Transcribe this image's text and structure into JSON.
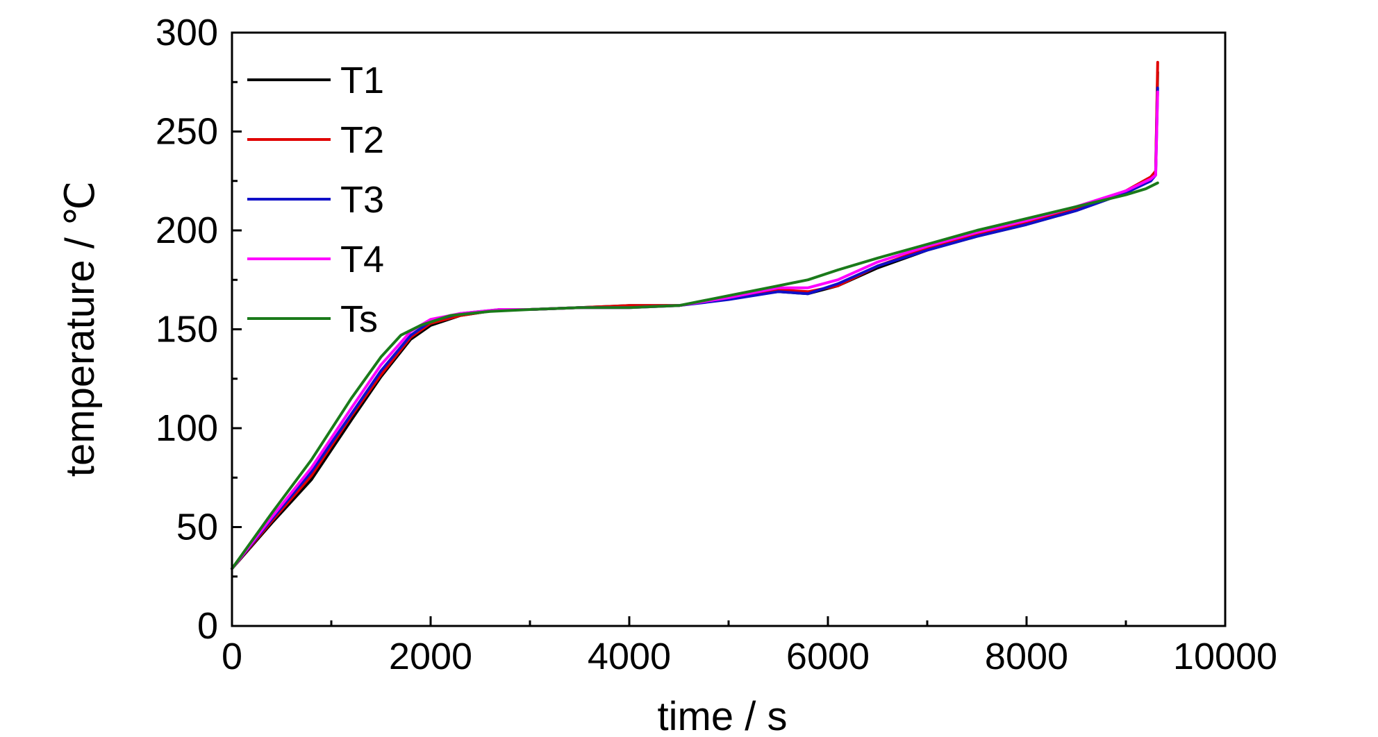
{
  "chart_data": {
    "type": "line",
    "xlabel": "time / s",
    "ylabel": "temperature / ℃",
    "xlim": [
      0,
      10000
    ],
    "ylim": [
      0,
      300
    ],
    "x_ticks": [
      "0",
      "2000",
      "4000",
      "6000",
      "8000",
      "10000"
    ],
    "y_ticks": [
      "0",
      "50",
      "100",
      "150",
      "200",
      "250",
      "300"
    ],
    "grid": false,
    "legend_position": "top-left",
    "series": [
      {
        "name": "T1",
        "color": "#000000",
        "points": [
          [
            0,
            29
          ],
          [
            400,
            52
          ],
          [
            800,
            74
          ],
          [
            1200,
            104
          ],
          [
            1500,
            126
          ],
          [
            1800,
            145
          ],
          [
            2000,
            152
          ],
          [
            2300,
            157
          ],
          [
            2700,
            160
          ],
          [
            3000,
            160
          ],
          [
            3500,
            161
          ],
          [
            4000,
            162
          ],
          [
            4500,
            162
          ],
          [
            5000,
            166
          ],
          [
            5500,
            169
          ],
          [
            5800,
            168
          ],
          [
            6100,
            172
          ],
          [
            6500,
            181
          ],
          [
            7000,
            190
          ],
          [
            7500,
            197
          ],
          [
            8000,
            203
          ],
          [
            8500,
            210
          ],
          [
            9000,
            219
          ],
          [
            9250,
            226
          ],
          [
            9300,
            230
          ],
          [
            9320,
            280
          ]
        ]
      },
      {
        "name": "T2",
        "color": "#e00000",
        "points": [
          [
            0,
            29
          ],
          [
            400,
            53
          ],
          [
            800,
            76
          ],
          [
            1200,
            106
          ],
          [
            1500,
            127
          ],
          [
            1800,
            146
          ],
          [
            2000,
            153
          ],
          [
            2300,
            157
          ],
          [
            2700,
            160
          ],
          [
            3000,
            160
          ],
          [
            3500,
            161
          ],
          [
            4000,
            162
          ],
          [
            4500,
            162
          ],
          [
            5000,
            166
          ],
          [
            5500,
            170
          ],
          [
            5800,
            169
          ],
          [
            6100,
            172
          ],
          [
            6500,
            182
          ],
          [
            7000,
            191
          ],
          [
            7500,
            198
          ],
          [
            8000,
            204
          ],
          [
            8500,
            211
          ],
          [
            9000,
            220
          ],
          [
            9250,
            227
          ],
          [
            9300,
            230
          ],
          [
            9320,
            285
          ]
        ]
      },
      {
        "name": "T3",
        "color": "#1010c8",
        "points": [
          [
            0,
            29
          ],
          [
            400,
            54
          ],
          [
            800,
            78
          ],
          [
            1200,
            107
          ],
          [
            1500,
            129
          ],
          [
            1800,
            147
          ],
          [
            2000,
            154
          ],
          [
            2300,
            158
          ],
          [
            2700,
            160
          ],
          [
            3000,
            160
          ],
          [
            3500,
            161
          ],
          [
            4000,
            161
          ],
          [
            4500,
            162
          ],
          [
            5000,
            165
          ],
          [
            5500,
            169
          ],
          [
            5800,
            168
          ],
          [
            6100,
            173
          ],
          [
            6500,
            182
          ],
          [
            7000,
            190
          ],
          [
            7500,
            197
          ],
          [
            8000,
            203
          ],
          [
            8500,
            210
          ],
          [
            9000,
            219
          ],
          [
            9250,
            225
          ],
          [
            9300,
            228
          ],
          [
            9320,
            272
          ]
        ]
      },
      {
        "name": "T4",
        "color": "#ff00ff",
        "points": [
          [
            0,
            29
          ],
          [
            400,
            55
          ],
          [
            800,
            80
          ],
          [
            1200,
            110
          ],
          [
            1500,
            132
          ],
          [
            1800,
            149
          ],
          [
            2000,
            155
          ],
          [
            2300,
            158
          ],
          [
            2700,
            160
          ],
          [
            3000,
            160
          ],
          [
            3500,
            161
          ],
          [
            4000,
            161
          ],
          [
            4500,
            162
          ],
          [
            5000,
            166
          ],
          [
            5500,
            171
          ],
          [
            5800,
            171
          ],
          [
            6100,
            175
          ],
          [
            6500,
            184
          ],
          [
            7000,
            192
          ],
          [
            7500,
            199
          ],
          [
            8000,
            205
          ],
          [
            8500,
            212
          ],
          [
            9000,
            220
          ],
          [
            9250,
            226
          ],
          [
            9300,
            228
          ],
          [
            9320,
            270
          ]
        ]
      },
      {
        "name": "Ts",
        "color": "#1a7a1a",
        "points": [
          [
            0,
            29
          ],
          [
            400,
            57
          ],
          [
            800,
            84
          ],
          [
            1200,
            115
          ],
          [
            1500,
            136
          ],
          [
            1700,
            147
          ],
          [
            1900,
            152
          ],
          [
            2200,
            157
          ],
          [
            2600,
            159
          ],
          [
            3000,
            160
          ],
          [
            3500,
            161
          ],
          [
            4000,
            161
          ],
          [
            4500,
            162
          ],
          [
            5000,
            167
          ],
          [
            5500,
            172
          ],
          [
            5800,
            175
          ],
          [
            6100,
            180
          ],
          [
            6500,
            186
          ],
          [
            7000,
            193
          ],
          [
            7500,
            200
          ],
          [
            8000,
            206
          ],
          [
            8500,
            212
          ],
          [
            9000,
            218
          ],
          [
            9200,
            221
          ],
          [
            9320,
            224
          ]
        ]
      }
    ]
  }
}
